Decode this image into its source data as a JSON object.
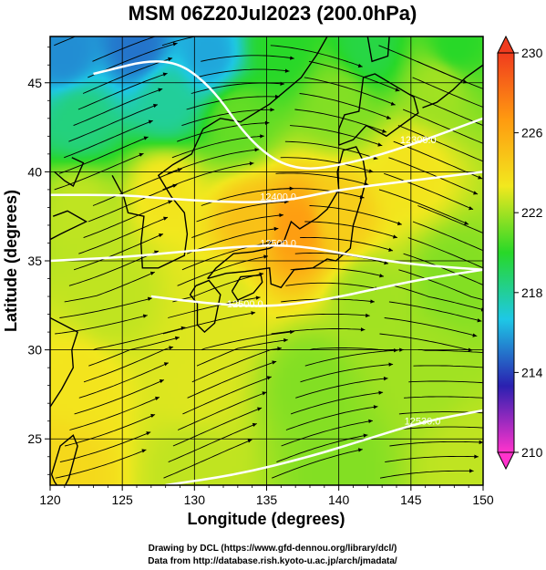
{
  "figure": {
    "title": "MSM 06Z20Jul2023 (200.0hPa)",
    "xlabel": "Longitude (degrees)",
    "ylabel": "Latitude  (degrees)",
    "credit_line1": "Drawing by DCL (https://www.gfd-dennou.org/library/dcl/)",
    "credit_line2": "Data from http://database.rish.kyoto-u.ac.jp/arch/jmadata/"
  },
  "chart_data": {
    "type": "heatmap",
    "title": "MSM 06Z20Jul2023 (200.0hPa)",
    "xlabel": "Longitude (degrees)",
    "ylabel": "Latitude  (degrees)",
    "xlim": [
      120,
      150
    ],
    "ylim": [
      22.4,
      47.6
    ],
    "x_ticks": [
      "120",
      "125",
      "130",
      "135",
      "140",
      "145",
      "150"
    ],
    "y_ticks": [
      "25",
      "30",
      "35",
      "40",
      "45"
    ],
    "x_tick_values": [
      120,
      125,
      130,
      135,
      140,
      145,
      150
    ],
    "y_tick_values": [
      25,
      30,
      35,
      40,
      45
    ],
    "grid": true,
    "colorbar": {
      "range": [
        210,
        230
      ],
      "ticks": [
        "210",
        "214",
        "218",
        "222",
        "226",
        "230"
      ],
      "tick_values": [
        210,
        214,
        218,
        222,
        226,
        230
      ],
      "colors": [
        "#ff33cc",
        "#2a20b0",
        "#1ec8e6",
        "#28d828",
        "#f2e81e",
        "#ff9a10",
        "#f03c1e"
      ]
    },
    "contours": [
      {
        "label": "12300.0",
        "points": [
          [
            123,
            45.5
          ],
          [
            128,
            46.5
          ],
          [
            131,
            45.0
          ],
          [
            134,
            41.5
          ],
          [
            137,
            40.0
          ],
          [
            141,
            40.5
          ],
          [
            145,
            41.5
          ],
          [
            150,
            43.0
          ]
        ],
        "label_at": [
          145.5,
          41.6
        ]
      },
      {
        "label": "12400.0",
        "points": [
          [
            120,
            38.7
          ],
          [
            125,
            38.7
          ],
          [
            128,
            38.5
          ],
          [
            132,
            38.3
          ],
          [
            136,
            38.3
          ],
          [
            140,
            39.0
          ],
          [
            145,
            39.5
          ],
          [
            150,
            40.0
          ]
        ],
        "label_at": [
          135.8,
          38.4
        ]
      },
      {
        "label": "12500.0",
        "points": [
          [
            120,
            35.0
          ],
          [
            125,
            35.2
          ],
          [
            129,
            35.5
          ],
          [
            133,
            35.8
          ],
          [
            137,
            35.9
          ],
          [
            141,
            35.3
          ],
          [
            145,
            34.8
          ],
          [
            150,
            34.5
          ]
        ],
        "label_at": [
          135.8,
          35.8
        ]
      },
      {
        "label": "12500.0",
        "points": [
          [
            127,
            33.0
          ],
          [
            131,
            32.6
          ],
          [
            135,
            32.4
          ],
          [
            139,
            32.8
          ],
          [
            143,
            33.5
          ],
          [
            146,
            34.0
          ],
          [
            150,
            34.5
          ]
        ],
        "label_at": [
          133.5,
          32.4
        ]
      },
      {
        "label": "12530.0",
        "points": [
          [
            128,
            22.4
          ],
          [
            133,
            23.0
          ],
          [
            138,
            24.0
          ],
          [
            142,
            25.0
          ],
          [
            146,
            26.0
          ],
          [
            150,
            26.6
          ]
        ],
        "label_at": [
          145.8,
          25.8
        ]
      }
    ],
    "temperature_field": {
      "units": "colorbar value",
      "anchors": [
        {
          "lon": 121,
          "lat": 46.5,
          "v": 215.5
        },
        {
          "lon": 126,
          "lat": 47.0,
          "v": 215.0
        },
        {
          "lon": 131,
          "lat": 46.5,
          "v": 216.0
        },
        {
          "lon": 136,
          "lat": 47.0,
          "v": 220.0
        },
        {
          "lon": 142,
          "lat": 47.0,
          "v": 219.5
        },
        {
          "lon": 148,
          "lat": 47.0,
          "v": 220.0
        },
        {
          "lon": 122,
          "lat": 43.0,
          "v": 218.5
        },
        {
          "lon": 128,
          "lat": 44.0,
          "v": 218.0
        },
        {
          "lon": 133,
          "lat": 43.0,
          "v": 221.0
        },
        {
          "lon": 140,
          "lat": 44.0,
          "v": 221.5
        },
        {
          "lon": 147,
          "lat": 45.0,
          "v": 222.0
        },
        {
          "lon": 137,
          "lat": 36.8,
          "v": 226.5
        },
        {
          "lon": 134,
          "lat": 37.0,
          "v": 225.0
        },
        {
          "lon": 140,
          "lat": 37.5,
          "v": 224.5
        },
        {
          "lon": 128,
          "lat": 39.0,
          "v": 223.5
        },
        {
          "lon": 122,
          "lat": 38.0,
          "v": 222.5
        },
        {
          "lon": 145,
          "lat": 40.0,
          "v": 223.5
        },
        {
          "lon": 124,
          "lat": 33.0,
          "v": 222.5
        },
        {
          "lon": 132,
          "lat": 33.0,
          "v": 223.0
        },
        {
          "lon": 142,
          "lat": 33.0,
          "v": 222.0
        },
        {
          "lon": 148,
          "lat": 34.0,
          "v": 221.5
        },
        {
          "lon": 122,
          "lat": 28.0,
          "v": 223.5
        },
        {
          "lon": 130,
          "lat": 28.0,
          "v": 223.0
        },
        {
          "lon": 138,
          "lat": 28.0,
          "v": 221.5
        },
        {
          "lon": 146,
          "lat": 29.0,
          "v": 222.0
        },
        {
          "lon": 121,
          "lat": 23.5,
          "v": 224.0
        },
        {
          "lon": 130,
          "lat": 23.5,
          "v": 222.5
        },
        {
          "lon": 140,
          "lat": 23.5,
          "v": 221.5
        },
        {
          "lon": 149,
          "lat": 23.5,
          "v": 222.5
        }
      ]
    },
    "wind_field": "streamlines with arrowheads; westerly flow arching north over Korea and Japan, southwesterly in the south"
  },
  "coastlines": {
    "japan_honshu": [
      [
        130.9,
        34.0
      ],
      [
        132.2,
        34.3
      ],
      [
        133.5,
        34.4
      ],
      [
        135.2,
        34.6
      ],
      [
        135.3,
        33.7
      ],
      [
        136.0,
        33.5
      ],
      [
        136.9,
        34.5
      ],
      [
        138.2,
        34.6
      ],
      [
        139.2,
        35.1
      ],
      [
        139.8,
        35.0
      ],
      [
        140.8,
        35.7
      ],
      [
        141.0,
        37.0
      ],
      [
        141.5,
        38.3
      ],
      [
        141.9,
        39.6
      ],
      [
        141.7,
        40.6
      ],
      [
        141.2,
        41.4
      ],
      [
        140.3,
        41.2
      ],
      [
        139.9,
        40.0
      ],
      [
        140.0,
        39.0
      ],
      [
        139.2,
        37.9
      ],
      [
        138.5,
        37.4
      ],
      [
        137.3,
        36.8
      ],
      [
        136.7,
        37.2
      ],
      [
        136.2,
        36.1
      ],
      [
        135.2,
        35.7
      ],
      [
        134.0,
        35.5
      ],
      [
        132.7,
        35.4
      ],
      [
        131.5,
        34.6
      ],
      [
        130.9,
        34.0
      ]
    ],
    "japan_hokkaido": [
      [
        140.0,
        41.5
      ],
      [
        141.0,
        41.8
      ],
      [
        141.9,
        42.6
      ],
      [
        143.3,
        42.0
      ],
      [
        145.5,
        43.3
      ],
      [
        145.2,
        44.2
      ],
      [
        142.5,
        45.5
      ],
      [
        141.7,
        45.3
      ],
      [
        141.4,
        43.4
      ],
      [
        140.4,
        43.2
      ],
      [
        140.0,
        42.4
      ],
      [
        140.0,
        41.5
      ]
    ],
    "japan_kyushu": [
      [
        130.1,
        33.6
      ],
      [
        131.0,
        33.9
      ],
      [
        131.8,
        33.1
      ],
      [
        131.4,
        31.5
      ],
      [
        130.7,
        31.0
      ],
      [
        130.2,
        31.4
      ],
      [
        130.2,
        32.6
      ],
      [
        129.7,
        33.1
      ],
      [
        130.1,
        33.6
      ]
    ],
    "japan_shikoku": [
      [
        132.6,
        33.3
      ],
      [
        133.2,
        34.1
      ],
      [
        134.6,
        34.2
      ],
      [
        134.7,
        33.8
      ],
      [
        134.1,
        33.2
      ],
      [
        133.0,
        32.8
      ],
      [
        132.6,
        33.3
      ]
    ],
    "korea": [
      [
        124.3,
        39.8
      ],
      [
        125.1,
        38.6
      ],
      [
        125.4,
        37.7
      ],
      [
        126.5,
        37.5
      ],
      [
        126.3,
        36.0
      ],
      [
        126.4,
        34.6
      ],
      [
        127.5,
        34.6
      ],
      [
        129.3,
        35.3
      ],
      [
        129.5,
        36.5
      ],
      [
        129.3,
        37.7
      ],
      [
        128.4,
        38.6
      ],
      [
        127.5,
        39.8
      ],
      [
        128.5,
        40.4
      ],
      [
        129.8,
        41.0
      ],
      [
        130.6,
        42.4
      ]
    ],
    "china_coast": [
      [
        121.5,
        40.8
      ],
      [
        122.3,
        40.5
      ],
      [
        121.6,
        39.2
      ],
      [
        121.0,
        39.5
      ],
      [
        120.3,
        40.0
      ]
    ],
    "china_east": [
      [
        120.0,
        36.2
      ],
      [
        120.7,
        36.5
      ],
      [
        122.5,
        37.2
      ],
      [
        121.2,
        37.8
      ],
      [
        120.2,
        37.5
      ]
    ],
    "china_south": [
      [
        120.0,
        31.8
      ],
      [
        121.9,
        31.0
      ],
      [
        121.5,
        30.0
      ],
      [
        121.6,
        29.0
      ],
      [
        120.8,
        27.8
      ],
      [
        120.0,
        26.8
      ]
    ],
    "taiwan": [
      [
        120.1,
        23.0
      ],
      [
        120.7,
        24.6
      ],
      [
        121.6,
        25.2
      ],
      [
        121.9,
        24.6
      ],
      [
        121.3,
        22.8
      ],
      [
        120.8,
        22.0
      ],
      [
        120.3,
        22.6
      ],
      [
        120.1,
        23.0
      ]
    ],
    "russia": [
      [
        130.6,
        42.4
      ],
      [
        131.8,
        43.0
      ],
      [
        133.2,
        42.8
      ],
      [
        135.2,
        43.8
      ],
      [
        137.4,
        45.3
      ],
      [
        138.5,
        46.6
      ],
      [
        139.2,
        47.6
      ]
    ],
    "sakhalin": [
      [
        142.0,
        47.6
      ],
      [
        142.3,
        46.2
      ],
      [
        143.4,
        46.5
      ],
      [
        143.5,
        47.6
      ]
    ],
    "kurils": [
      [
        145.8,
        43.6
      ],
      [
        146.8,
        43.9
      ],
      [
        147.9,
        44.6
      ],
      [
        148.8,
        45.3
      ],
      [
        150.0,
        46.0
      ]
    ]
  }
}
